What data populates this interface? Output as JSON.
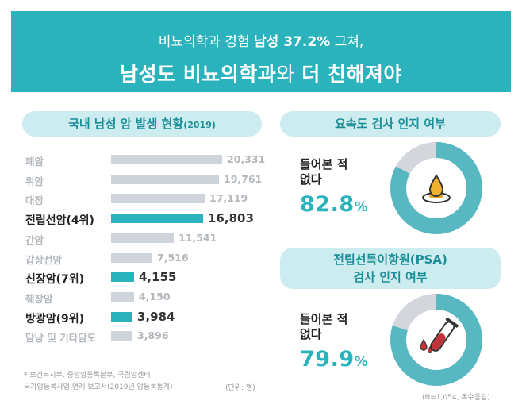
{
  "header": {
    "line1_pre": "비뇨의학과 경험 ",
    "line1_bold": "남성 37.2%",
    "line1_post": " 그쳐,",
    "line2_a": "남성도 비뇨의학과",
    "line2_b": "와 ",
    "line2_c": "더 친해져야"
  },
  "left": {
    "title": "국내 남성 암 발생 현황",
    "title_year": "(2019)",
    "note1": "* 보건복지부, 중앙암등록본부, 국립암센터",
    "note2": "국가암등록사업 연례 보고서(2019년 암등록통계)",
    "unit": "(단위: 명)"
  },
  "chart_data": {
    "type": "bar",
    "orientation": "horizontal",
    "title": "국내 남성 암 발생 현황(2019)",
    "categories": [
      "폐암",
      "위암",
      "대장",
      "전립선암(4위)",
      "간암",
      "갑상선암",
      "신장암(7위)",
      "췌장암",
      "방광암(9위)",
      "담낭 및 기타담도"
    ],
    "values": [
      20331,
      19761,
      17119,
      16803,
      11541,
      7516,
      4155,
      4150,
      3984,
      3896
    ],
    "value_labels": [
      "20,331",
      "19,761",
      "17,119",
      "16,803",
      "11,541",
      "7,516",
      "4,155",
      "4,150",
      "3,984",
      "3,896"
    ],
    "highlighted": [
      false,
      false,
      false,
      true,
      false,
      false,
      true,
      false,
      true,
      false
    ],
    "unit": "명",
    "colors": {
      "normal": "#cfd3da",
      "highlight": "#2bb3bd"
    }
  },
  "right": {
    "card1": {
      "title": "요속도 검사 인지 여부",
      "label_line1": "들어본 적",
      "label_line2": "없다",
      "pct_num": "82.8",
      "pct_sign": "%",
      "value": 82.8,
      "icon": "water-drop-icon"
    },
    "card2": {
      "title_line1": "전립선특이항원(PSA)",
      "title_line2": "검사 인지 여부",
      "label_line1": "들어본 적",
      "label_line2": "없다",
      "pct_num": "79.9",
      "pct_sign": "%",
      "value": 79.9,
      "icon": "test-tube-icon"
    },
    "basis": "(N=1,054, 복수응답)"
  },
  "colors": {
    "accent": "#2bb3bd",
    "accent_light": "#cdecef",
    "bar_gray": "#cfd3da",
    "ring_rest": "#d3d6da"
  }
}
